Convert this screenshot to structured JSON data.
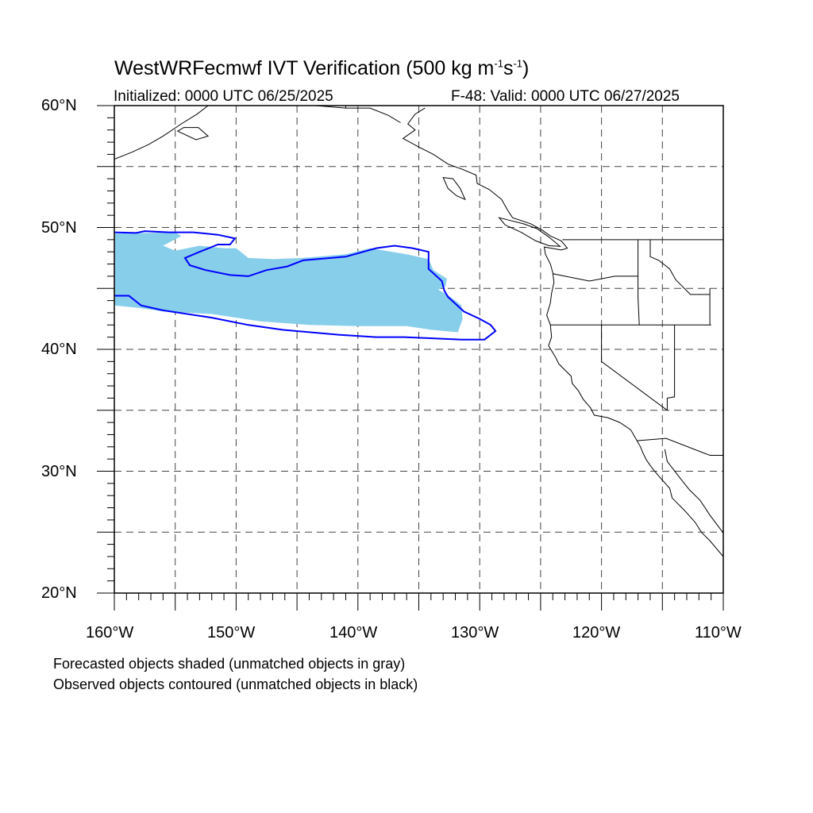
{
  "title": {
    "prefix": "WestWRFecmwf IVT Verification (500 kg m",
    "sup1": "-1",
    "mid": "s",
    "sup2": "-1",
    "suffix": ")"
  },
  "initialized": "Initialized: 0000 UTC 06/25/2025",
  "valid": "F-48: Valid: 0000 UTC 06/27/2025",
  "map": {
    "lon_range": [
      -160,
      -110
    ],
    "lat_range": [
      20,
      60
    ],
    "grid": true,
    "grid_style": "dashed",
    "lat_labels": [
      "60°N",
      "50°N",
      "40°N",
      "30°N",
      "20°N"
    ],
    "lon_labels": [
      "160°W",
      "150°W",
      "140°W",
      "130°W",
      "120°W",
      "110°W"
    ],
    "forecast_object": {
      "fill_color": "#87ceeb",
      "outline": [
        [
          -160,
          49.5
        ],
        [
          -155,
          49.6
        ],
        [
          -154.5,
          49.3
        ],
        [
          -156,
          48.5
        ],
        [
          -155,
          48.1
        ],
        [
          -153,
          48.5
        ],
        [
          -151,
          48.3
        ],
        [
          -150,
          48.3
        ],
        [
          -149,
          47.5
        ],
        [
          -147,
          47.4
        ],
        [
          -144.5,
          47.5
        ],
        [
          -141,
          47.8
        ],
        [
          -139,
          48.3
        ],
        [
          -136,
          47.8
        ],
        [
          -134.2,
          47.4
        ],
        [
          -133.8,
          46.5
        ],
        [
          -132.7,
          45.8
        ],
        [
          -132.8,
          45.2
        ],
        [
          -133.4,
          44.9
        ],
        [
          -132.4,
          44.3
        ],
        [
          -131.5,
          43.6
        ],
        [
          -131.4,
          42.5
        ],
        [
          -131.8,
          41.4
        ],
        [
          -134,
          41.6
        ],
        [
          -136,
          41.9
        ],
        [
          -140,
          41.9
        ],
        [
          -144,
          42.0
        ],
        [
          -148,
          42.3
        ],
        [
          -152,
          42.9
        ],
        [
          -156,
          43.1
        ],
        [
          -158,
          43.4
        ],
        [
          -160,
          43.6
        ]
      ]
    },
    "observed_object": {
      "contour_color": "#0000ff",
      "outline": [
        [
          -160,
          49.6
        ],
        [
          -158.2,
          49.55
        ],
        [
          -157.5,
          49.7
        ],
        [
          -155.5,
          49.6
        ],
        [
          -153.5,
          49.6
        ],
        [
          -151.5,
          49.4
        ],
        [
          -150.1,
          49.1
        ],
        [
          -150.5,
          48.6
        ],
        [
          -151.5,
          48.6
        ],
        [
          -153,
          48.0
        ],
        [
          -154.2,
          47.5
        ],
        [
          -153.8,
          46.9
        ],
        [
          -152.5,
          46.5
        ],
        [
          -150.5,
          46.1
        ],
        [
          -149.0,
          46.0
        ],
        [
          -147.5,
          46.5
        ],
        [
          -145.8,
          46.8
        ],
        [
          -144.5,
          47.3
        ],
        [
          -141,
          47.6
        ],
        [
          -138.5,
          48.3
        ],
        [
          -137.0,
          48.5
        ],
        [
          -135.5,
          48.3
        ],
        [
          -134.2,
          48.0
        ],
        [
          -134.2,
          46.6
        ],
        [
          -133.1,
          45.6
        ],
        [
          -132.9,
          44.8
        ],
        [
          -132.6,
          44.3
        ],
        [
          -131.3,
          43.1
        ],
        [
          -130.0,
          42.5
        ],
        [
          -129.1,
          42.0
        ],
        [
          -128.7,
          41.5
        ],
        [
          -129.6,
          40.8
        ],
        [
          -131.5,
          40.8
        ],
        [
          -133.7,
          40.9
        ],
        [
          -136.2,
          41.0
        ],
        [
          -138.5,
          41.0
        ],
        [
          -141.6,
          41.2
        ],
        [
          -146.2,
          41.6
        ],
        [
          -149.0,
          42.0
        ],
        [
          -152.0,
          42.6
        ],
        [
          -156.0,
          43.2
        ],
        [
          -157.8,
          43.6
        ],
        [
          -158.8,
          44.4
        ],
        [
          -160,
          44.4
        ]
      ]
    }
  },
  "footnotes": [
    "Forecasted objects shaded (unmatched objects in gray)",
    "Observed objects contoured (unmatched objects in black)"
  ]
}
